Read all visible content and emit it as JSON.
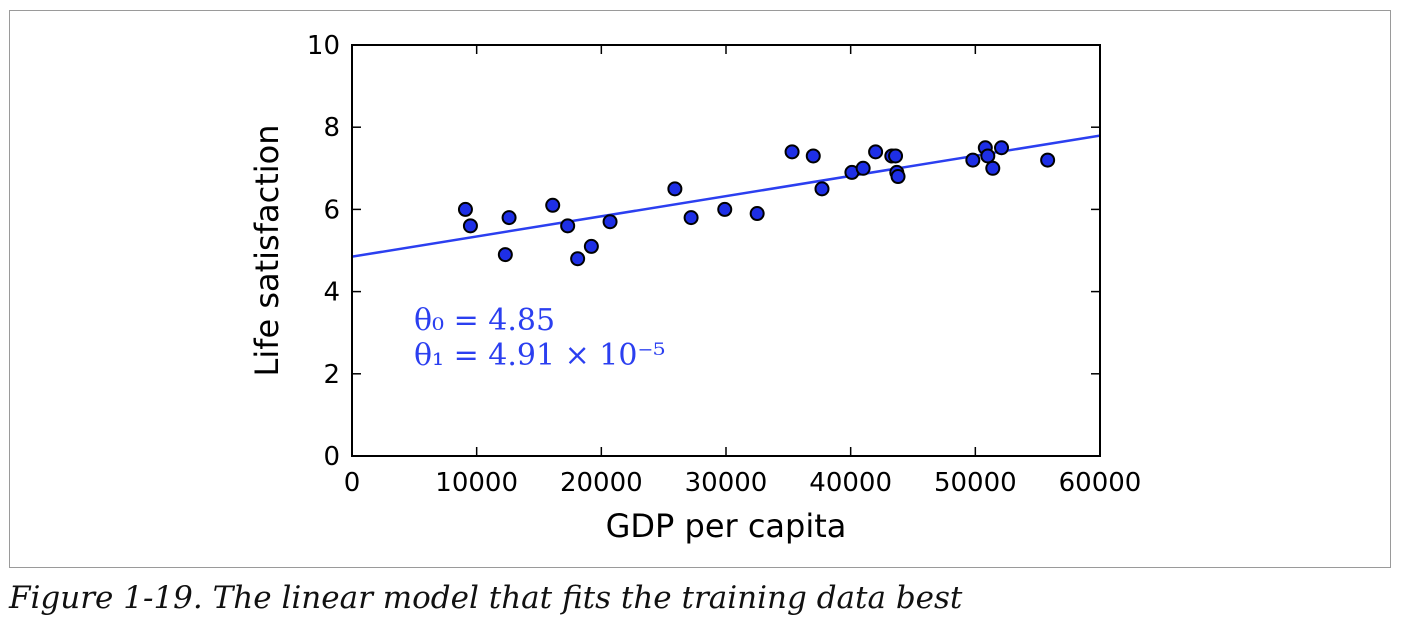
{
  "caption": "Figure 1-19. The linear model that fits the training data best",
  "colors": {
    "line": "#2b3ff0",
    "marker_fill": "#1e2fe6",
    "marker_edge": "#000000",
    "annotation": "#2b3ff0"
  },
  "chart_data": {
    "type": "scatter",
    "title": "",
    "xlabel": "GDP per capita",
    "ylabel": "Life satisfaction",
    "xlim": [
      0,
      60000
    ],
    "ylim": [
      0,
      10
    ],
    "x_ticks": [
      0,
      10000,
      20000,
      30000,
      40000,
      50000,
      60000
    ],
    "x_tick_labels": [
      "0",
      "10000",
      "20000",
      "30000",
      "40000",
      "50000",
      "60000"
    ],
    "y_ticks": [
      0,
      2,
      4,
      6,
      8,
      10
    ],
    "y_tick_labels": [
      "0",
      "2",
      "4",
      "6",
      "8",
      "10"
    ],
    "grid": false,
    "points": [
      [
        9100,
        6.0
      ],
      [
        9500,
        5.6
      ],
      [
        12300,
        4.9
      ],
      [
        12600,
        5.8
      ],
      [
        16100,
        6.1
      ],
      [
        17300,
        5.6
      ],
      [
        18100,
        4.8
      ],
      [
        19200,
        5.1
      ],
      [
        20700,
        5.7
      ],
      [
        25900,
        6.5
      ],
      [
        27200,
        5.8
      ],
      [
        29900,
        6.0
      ],
      [
        32500,
        5.9
      ],
      [
        35300,
        7.4
      ],
      [
        37000,
        7.3
      ],
      [
        37700,
        6.5
      ],
      [
        40100,
        6.9
      ],
      [
        41000,
        7.0
      ],
      [
        42000,
        7.4
      ],
      [
        43300,
        7.3
      ],
      [
        43600,
        7.3
      ],
      [
        43700,
        6.9
      ],
      [
        43800,
        6.8
      ],
      [
        49800,
        7.2
      ],
      [
        50800,
        7.5
      ],
      [
        51000,
        7.3
      ],
      [
        51400,
        7.0
      ],
      [
        52100,
        7.5
      ],
      [
        55800,
        7.2
      ]
    ],
    "fit_line": {
      "theta0": 4.85,
      "theta1": 4.91e-05
    },
    "annotations": [
      {
        "line": "θ₀ = 4.85"
      },
      {
        "line": "θ₁ = 4.91 × 10⁻⁵"
      }
    ]
  }
}
